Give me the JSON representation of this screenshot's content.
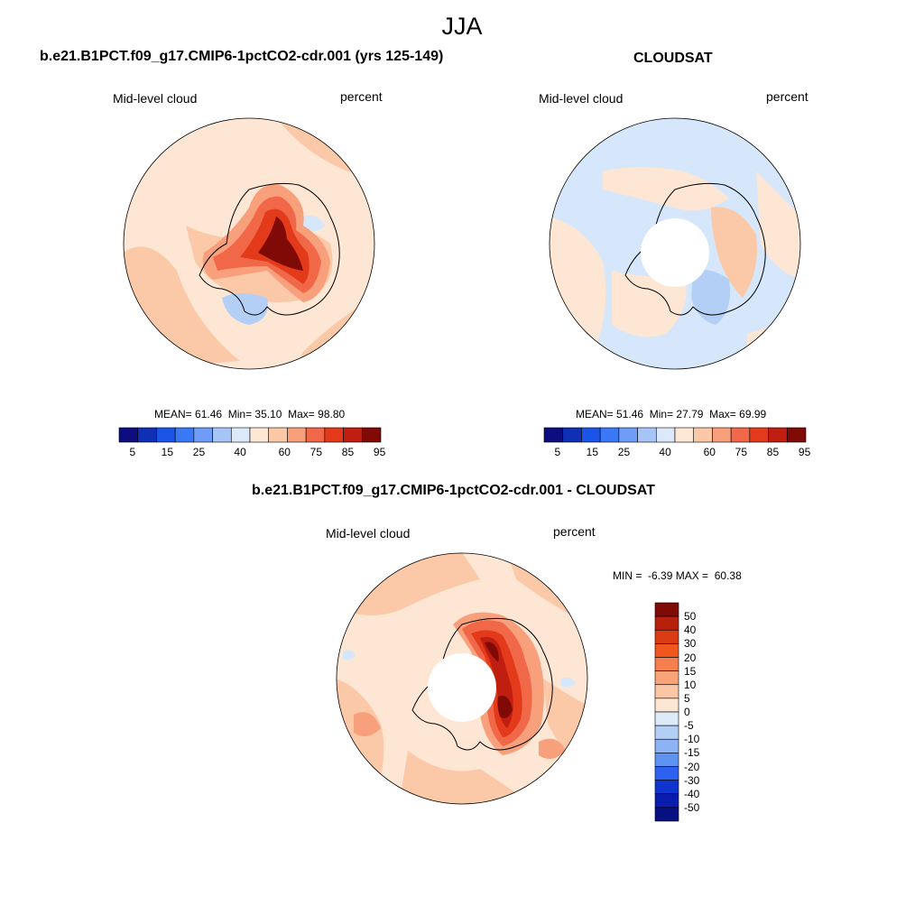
{
  "figure": {
    "title": "JJA"
  },
  "panels": [
    {
      "title": "b.e21.B1PCT.f09_g17.CMIP6-1pctCO2-cdr.001 (yrs 125-149)",
      "variable": "Mid-level cloud",
      "units": "percent",
      "stats": {
        "mean_label": "MEAN=",
        "mean": "61.46",
        "min_label": "Min=",
        "min": "35.10",
        "max_label": "Max=",
        "max": "98.80"
      }
    },
    {
      "title": "CLOUDSAT",
      "variable": "Mid-level cloud",
      "units": "percent",
      "stats": {
        "mean_label": "MEAN=",
        "mean": "51.46",
        "min_label": "Min=",
        "min": "27.79",
        "max_label": "Max=",
        "max": "69.99"
      }
    },
    {
      "title": "b.e21.B1PCT.f09_g17.CMIP6-1pctCO2-cdr.001 - CLOUDSAT",
      "variable": "Mid-level cloud",
      "units": "percent",
      "stats": {
        "min_label": "MIN =",
        "min": "-6.39",
        "max_label": "MAX =",
        "max": "60.38"
      }
    }
  ],
  "colorbars": {
    "absolute": {
      "labels": [
        "5",
        "15",
        "25",
        "40",
        "60",
        "75",
        "85",
        "95"
      ],
      "colors": [
        "#0d0d80",
        "#0f2fb4",
        "#1a55e8",
        "#3a78f5",
        "#6e9cf7",
        "#a6c4f5",
        "#dce9fb",
        "#fde8d6",
        "#fbc9a8",
        "#f7a07b",
        "#f16848",
        "#e33a1c",
        "#c01e10",
        "#7f0a06"
      ]
    },
    "difference": {
      "labels": [
        "50",
        "40",
        "30",
        "20",
        "15",
        "10",
        "5",
        "0",
        "-5",
        "-10",
        "-15",
        "-20",
        "-30",
        "-40",
        "-50"
      ],
      "colors": [
        "#7f0a06",
        "#b8200e",
        "#dc3c14",
        "#f0571e",
        "#f57f4f",
        "#f9a378",
        "#fbc6a4",
        "#fde7d4",
        "#ddeafa",
        "#b4cff6",
        "#8db3f4",
        "#5f93f2",
        "#2f61f0",
        "#0f34d0",
        "#0a1cae",
        "#061080"
      ]
    }
  },
  "map_colors": {
    "ocean_light": "#fde7d4",
    "ocean_mid": "#fbc9a8",
    "blue_light": "#d6e7fb",
    "blue_mid": "#b4cff6",
    "red_1": "#f7a07b",
    "red_2": "#f16848",
    "red_3": "#e33a1c",
    "red_4": "#c01e10",
    "red_5": "#7f0a06",
    "coast": "#000000"
  }
}
